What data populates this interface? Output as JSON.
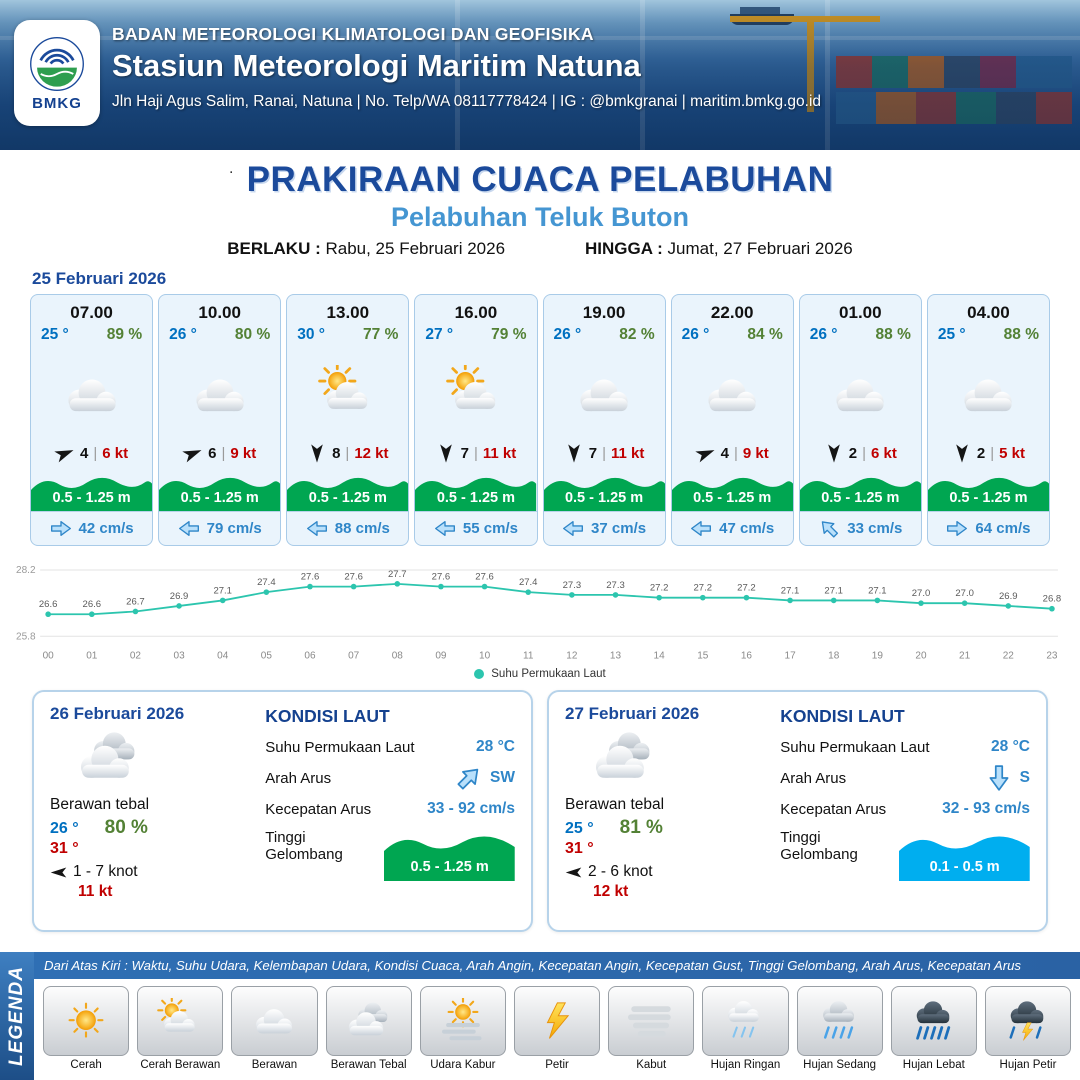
{
  "ui": {
    "dot": ".",
    "sep": "|"
  },
  "colors": {
    "accent": "#1b4a9b",
    "subtitle": "#4596d2",
    "green_wave": "#00a651",
    "blue_wave": "#00aeef",
    "teal_line": "#2cc5ae",
    "temp": "#0070c0",
    "humidity": "#538135",
    "alert": "#c00000",
    "current": "#2f86c8"
  },
  "header": {
    "logo_text": "BMKG",
    "org": "BADAN METEOROLOGI KLIMATOLOGI DAN GEOFISIKA",
    "station": "Stasiun Meteorologi Maritim Natuna",
    "contact": "Jln Haji Agus Salim, Ranai, Natuna  | No. Telp/WA 08117778424 | IG : @bmkgranai | maritim.bmkg.go.id"
  },
  "title": {
    "main": "PRAKIRAAN CUACA PELABUHAN",
    "subtitle": "Pelabuhan Teluk Buton",
    "berlaku_label": "BERLAKU :",
    "berlaku_value": "Rabu, 25 Februari 2026",
    "hingga_label": "HINGGA :",
    "hingga_value": "Jumat, 27 Februari 2026"
  },
  "forecast": {
    "date": "25 Februari 2026",
    "cards": [
      {
        "time": "07.00",
        "temp": "25 °",
        "humidity": "89 %",
        "sky": "berawan",
        "wind_dir": "ENE",
        "wind_val": "4",
        "wind_speed": "6 kt",
        "wave": "0.5 - 1.25 m",
        "current_dir": "E",
        "current": "42 cm/s"
      },
      {
        "time": "10.00",
        "temp": "26 °",
        "humidity": "80 %",
        "sky": "berawan",
        "wind_dir": "ENE",
        "wind_val": "6",
        "wind_speed": "9 kt",
        "wave": "0.5 - 1.25 m",
        "current_dir": "W",
        "current": "79 cm/s"
      },
      {
        "time": "13.00",
        "temp": "30 °",
        "humidity": "77 %",
        "sky": "cerah-berawan",
        "wind_dir": "S",
        "wind_val": "8",
        "wind_speed": "12 kt",
        "wave": "0.5 - 1.25 m",
        "current_dir": "W",
        "current": "88 cm/s"
      },
      {
        "time": "16.00",
        "temp": "27 °",
        "humidity": "79 %",
        "sky": "cerah-berawan",
        "wind_dir": "S",
        "wind_val": "7",
        "wind_speed": "11 kt",
        "wave": "0.5 - 1.25 m",
        "current_dir": "W",
        "current": "55 cm/s"
      },
      {
        "time": "19.00",
        "temp": "26 °",
        "humidity": "82 %",
        "sky": "berawan",
        "wind_dir": "S",
        "wind_val": "7",
        "wind_speed": "11 kt",
        "wave": "0.5 - 1.25 m",
        "current_dir": "W",
        "current": "37 cm/s"
      },
      {
        "time": "22.00",
        "temp": "26 °",
        "humidity": "84 %",
        "sky": "berawan",
        "wind_dir": "ENE",
        "wind_val": "4",
        "wind_speed": "9 kt",
        "wave": "0.5 - 1.25 m",
        "current_dir": "W",
        "current": "47 cm/s"
      },
      {
        "time": "01.00",
        "temp": "26 °",
        "humidity": "88 %",
        "sky": "berawan",
        "wind_dir": "S",
        "wind_val": "2",
        "wind_speed": "6 kt",
        "wave": "0.5 - 1.25 m",
        "current_dir": "NW",
        "current": "33 cm/s"
      },
      {
        "time": "04.00",
        "temp": "25 °",
        "humidity": "88 %",
        "sky": "berawan",
        "wind_dir": "S",
        "wind_val": "2",
        "wind_speed": "5 kt",
        "wave": "0.5 - 1.25 m",
        "current_dir": "E",
        "current": "64 cm/s"
      }
    ]
  },
  "chart_data": {
    "type": "line",
    "title": "Suhu Permukaan Laut",
    "x": [
      "00",
      "01",
      "02",
      "03",
      "04",
      "05",
      "06",
      "07",
      "08",
      "09",
      "10",
      "11",
      "12",
      "13",
      "14",
      "15",
      "16",
      "17",
      "18",
      "19",
      "20",
      "21",
      "22",
      "23"
    ],
    "series": [
      {
        "name": "Suhu Permukaan Laut",
        "color": "#2cc5ae",
        "values": [
          26.6,
          26.6,
          26.7,
          26.9,
          27.1,
          27.4,
          27.6,
          27.6,
          27.7,
          27.6,
          27.6,
          27.4,
          27.3,
          27.3,
          27.2,
          27.2,
          27.2,
          27.1,
          27.1,
          27.1,
          27.0,
          27.0,
          26.9,
          26.8
        ]
      }
    ],
    "ylim": [
      25.8,
      28.2
    ],
    "grid": false,
    "legend_position": "bottom"
  },
  "days": [
    {
      "date": "26 Februari 2026",
      "icon": "berawan-tebal",
      "condition": "Berawan tebal",
      "temp_min": "26 °",
      "humidity": "80 %",
      "temp_max": "31 °",
      "wind_dir": "W",
      "wind_range": "1 - 7 knot",
      "gust": "11 kt",
      "sea": {
        "title": "KONDISI LAUT",
        "sst_label": "Suhu Permukaan Laut",
        "sst": "28 °C",
        "current_dir_label": "Arah Arus",
        "current_dir": "SW",
        "current_arrow": "NE",
        "current_speed_label": "Kecepatan Arus",
        "current_speed": "33 - 92 cm/s",
        "wave_label": "Tinggi Gelombang",
        "wave": "0.5 - 1.25 m",
        "wave_color": "green"
      }
    },
    {
      "date": "27 Februari 2026",
      "icon": "berawan-tebal",
      "condition": "Berawan tebal",
      "temp_min": "25 °",
      "humidity": "81 %",
      "temp_max": "31 °",
      "wind_dir": "W",
      "wind_range": "2 - 6 knot",
      "gust": "12 kt",
      "sea": {
        "title": "KONDISI LAUT",
        "sst_label": "Suhu Permukaan Laut",
        "sst": "28 °C",
        "current_dir_label": "Arah Arus",
        "current_dir": "S",
        "current_arrow": "S",
        "current_speed_label": "Kecepatan Arus",
        "current_speed": "32 - 93 cm/s",
        "wave_label": "Tinggi Gelombang",
        "wave": "0.1 - 0.5 m",
        "wave_color": "blue"
      }
    }
  ],
  "legend": {
    "title": "LEGENDA",
    "note": "Dari Atas Kiri : Waktu, Suhu Udara, Kelembapan Udara, Kondisi Cuaca, Arah Angin, Kecepatan Angin, Kecepatan Gust, Tinggi Gelombang, Arah Arus, Kecepatan Arus",
    "items": [
      {
        "label": "Cerah",
        "icon": "cerah"
      },
      {
        "label": "Cerah Berawan",
        "icon": "cerah-berawan"
      },
      {
        "label": "Berawan",
        "icon": "berawan"
      },
      {
        "label": "Berawan Tebal",
        "icon": "berawan-tebal"
      },
      {
        "label": "Udara Kabur",
        "icon": "udara-kabur"
      },
      {
        "label": "Petir",
        "icon": "petir"
      },
      {
        "label": "Kabut",
        "icon": "kabut"
      },
      {
        "label": "Hujan Ringan",
        "icon": "hujan-ringan"
      },
      {
        "label": "Hujan Sedang",
        "icon": "hujan-sedang"
      },
      {
        "label": "Hujan Lebat",
        "icon": "hujan-lebat"
      },
      {
        "label": "Hujan Petir",
        "icon": "hujan-petir"
      }
    ]
  }
}
